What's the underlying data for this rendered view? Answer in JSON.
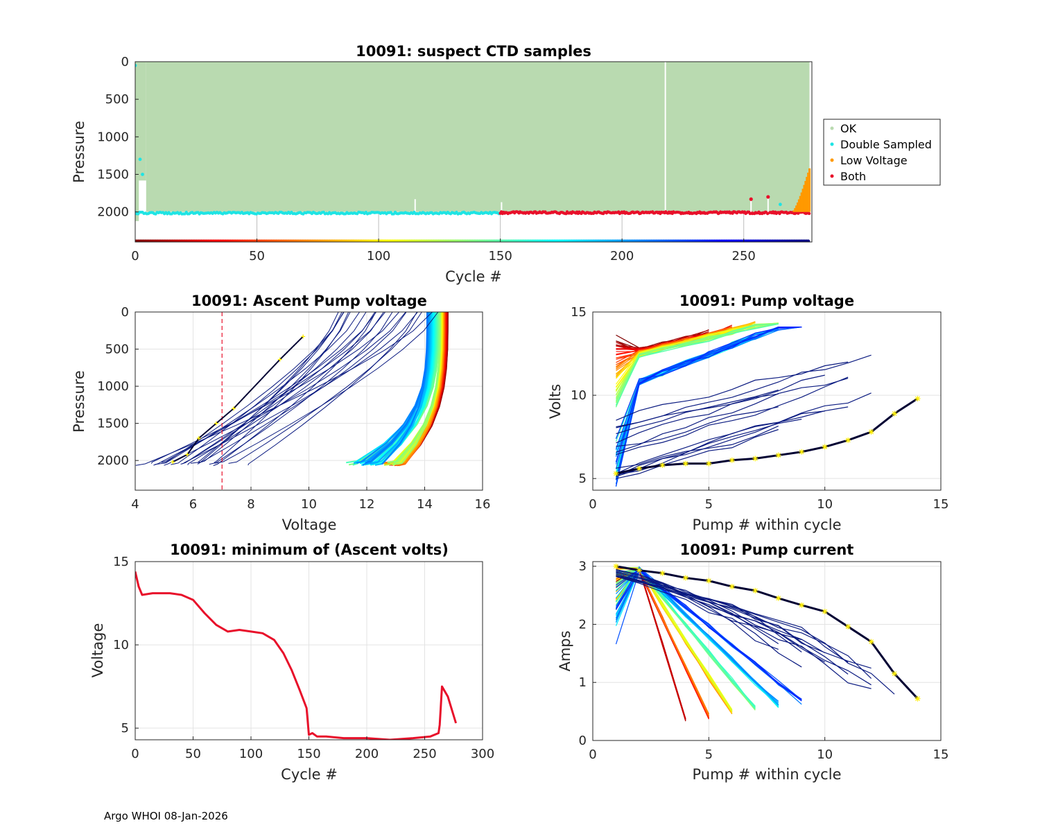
{
  "footer": "Argo WHOI 08-Jan-2026",
  "chart_data": [
    {
      "id": "suspect",
      "type": "scatter",
      "title": "10091: suspect CTD samples",
      "xlabel": "Cycle #",
      "ylabel": "Pressure",
      "xlim": [
        0,
        278
      ],
      "ylim": [
        0,
        2400
      ],
      "y_reversed": true,
      "xticks": [
        0,
        50,
        100,
        150,
        200,
        250
      ],
      "yticks": [
        0,
        500,
        1000,
        1500,
        2000
      ],
      "legend": {
        "position": "outside-right",
        "entries": [
          {
            "label": "OK",
            "color": "#b9dab0"
          },
          {
            "label": "Double Sampled",
            "color": "#1ee4e4"
          },
          {
            "label": "Low Voltage",
            "color": "#ff9900"
          },
          {
            "label": "Both",
            "color": "#e8102a"
          }
        ]
      },
      "ok_block": {
        "x": [
          0,
          277
        ],
        "pressure": [
          0,
          2000
        ]
      },
      "double_sampled_bottom": {
        "x": [
          0,
          150
        ],
        "pressure": 2015
      },
      "both_bottom": {
        "x": [
          150,
          277
        ],
        "pressure": 2010
      },
      "both_spikes": [
        {
          "x": 253,
          "pressure": 1830
        },
        {
          "x": 260,
          "pressure": 1800
        }
      ],
      "double_sampled_extra": [
        {
          "x": 0,
          "pressure": 50
        },
        {
          "x": 2,
          "pressure": 1300
        },
        {
          "x": 3,
          "pressure": 1500
        },
        {
          "x": 265,
          "pressure": 1900
        }
      ],
      "low_voltage_bars": {
        "x": [
          270,
          277
        ],
        "pressure_top": [
          2000,
          1420
        ]
      },
      "cycle_color_axis": {
        "pressure": 2400,
        "x": [
          0,
          277
        ],
        "colormap": "jet"
      }
    },
    {
      "id": "ascent",
      "type": "line",
      "title": "10091: Ascent Pump voltage",
      "xlabel": "Voltage",
      "ylabel": "Pressure",
      "xlim": [
        4,
        16
      ],
      "ylim": [
        0,
        2400
      ],
      "y_reversed": true,
      "xticks": [
        4,
        6,
        8,
        10,
        12,
        14,
        16
      ],
      "yticks": [
        0,
        500,
        1000,
        1500,
        2000
      ],
      "threshold_line": {
        "voltage": 7,
        "color": "#e8102a",
        "style": "dashed"
      },
      "curve_family": {
        "start_voltage": [
          13.0,
          14.8
        ],
        "end_voltage": [
          4.5,
          13.3
        ],
        "bottom_pressure": 2030,
        "top_pressure": 0
      },
      "last_cycle_points": [
        {
          "v": 5.3,
          "p": 2020
        },
        {
          "v": 5.8,
          "p": 1920
        },
        {
          "v": 6.2,
          "p": 1700
        },
        {
          "v": 6.8,
          "p": 1500
        },
        {
          "v": 7.4,
          "p": 1300
        },
        {
          "v": 9.0,
          "p": 640
        },
        {
          "v": 9.8,
          "p": 330
        }
      ]
    },
    {
      "id": "pumpv",
      "type": "line",
      "title": "10091: Pump voltage",
      "xlabel": "Pump # within cycle",
      "ylabel": "Volts",
      "xlim": [
        0,
        15
      ],
      "ylim": [
        4.3,
        15
      ],
      "xticks": [
        0,
        5,
        10,
        15
      ],
      "yticks": [
        5,
        10,
        15
      ],
      "last_cycle": {
        "pump": [
          1,
          2,
          3,
          4,
          5,
          6,
          7,
          8,
          9,
          10,
          11,
          12,
          13,
          14
        ],
        "volts": [
          5.3,
          5.6,
          5.8,
          5.9,
          5.9,
          6.1,
          6.2,
          6.4,
          6.6,
          6.9,
          7.3,
          7.8,
          8.9,
          9.8
        ]
      }
    },
    {
      "id": "minv",
      "type": "line",
      "title": "10091: minimum of (Ascent volts)",
      "xlabel": "Cycle #",
      "ylabel": "Voltage",
      "xlim": [
        0,
        300
      ],
      "ylim": [
        4.3,
        15
      ],
      "xticks": [
        0,
        50,
        100,
        150,
        200,
        250,
        300
      ],
      "yticks": [
        5,
        10,
        15
      ],
      "color": "#e8102a",
      "x": [
        0,
        3,
        6,
        15,
        30,
        40,
        50,
        60,
        70,
        80,
        90,
        100,
        110,
        120,
        128,
        135,
        142,
        148,
        150,
        153,
        157,
        165,
        180,
        200,
        220,
        240,
        255,
        262,
        263,
        265,
        270,
        277
      ],
      "y": [
        14.4,
        13.5,
        13.0,
        13.1,
        13.1,
        13.0,
        12.7,
        11.9,
        11.2,
        10.8,
        10.9,
        10.8,
        10.7,
        10.3,
        9.5,
        8.5,
        7.3,
        6.2,
        4.6,
        4.7,
        4.5,
        4.5,
        4.4,
        4.4,
        4.3,
        4.4,
        4.5,
        4.7,
        5.2,
        7.5,
        6.9,
        5.3
      ]
    },
    {
      "id": "pumpc",
      "type": "line",
      "title": "10091: Pump current",
      "xlabel": "Pump # within cycle",
      "ylabel": "Amps",
      "xlim": [
        0,
        15
      ],
      "ylim": [
        0,
        3.08
      ],
      "xticks": [
        0,
        5,
        10,
        15
      ],
      "yticks": [
        0,
        1,
        2,
        3
      ],
      "last_cycle": {
        "pump": [
          1,
          2,
          3,
          4,
          5,
          6,
          7,
          8,
          9,
          10,
          11,
          12,
          13,
          14
        ],
        "amps": [
          3.0,
          2.93,
          2.88,
          2.8,
          2.75,
          2.65,
          2.58,
          2.45,
          2.33,
          2.22,
          1.96,
          1.7,
          1.15,
          0.72
        ]
      }
    }
  ]
}
